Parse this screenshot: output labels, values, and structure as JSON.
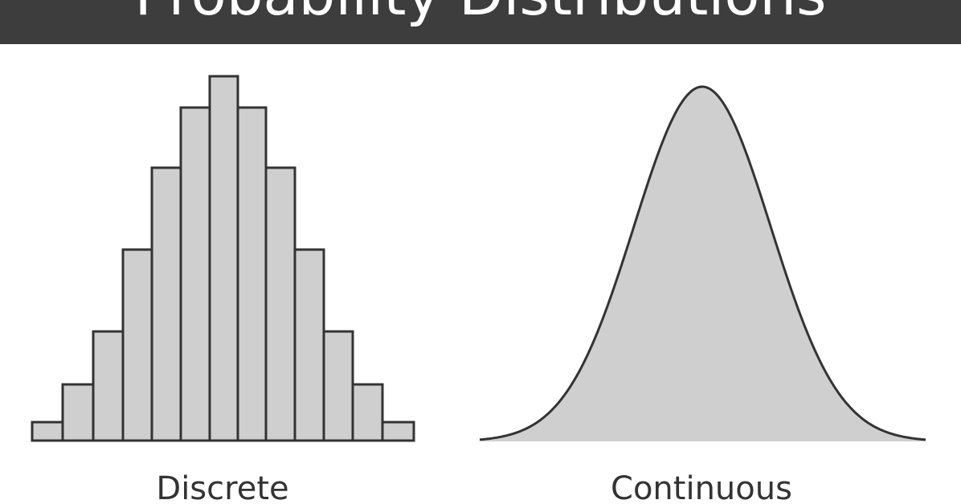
{
  "header": {
    "title": "Probability Distributions"
  },
  "panels": [
    {
      "label": "Discrete"
    },
    {
      "label": "Continuous"
    }
  ]
}
